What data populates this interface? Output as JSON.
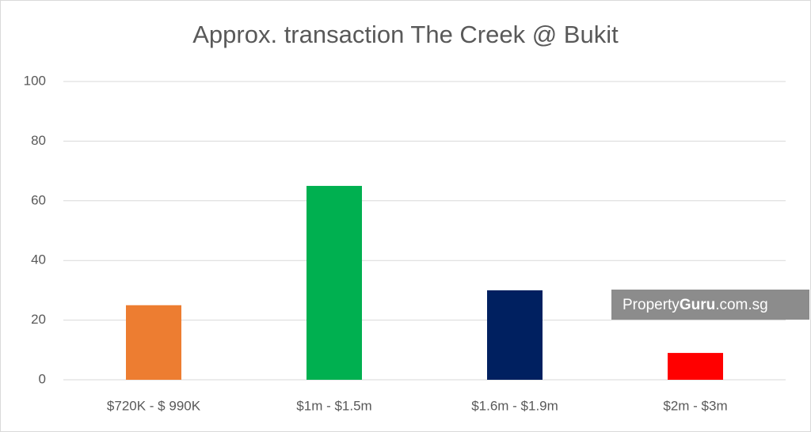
{
  "chart_data": {
    "type": "bar",
    "title": "Approx. transaction The Creek @ Bukit",
    "categories": [
      "$720K - $ 990K",
      "$1m - $1.5m",
      "$1.6m - $1.9m",
      "$2m - $3m"
    ],
    "values": [
      25,
      65,
      30,
      9
    ],
    "colors": [
      "#ed7d31",
      "#00b050",
      "#002060",
      "#ff0000"
    ],
    "ylim": [
      0,
      100
    ],
    "yticks": [
      0,
      20,
      40,
      60,
      80,
      100
    ],
    "grid": true
  },
  "watermark": {
    "parts": [
      "Property",
      "Guru",
      ".com.sg"
    ]
  }
}
